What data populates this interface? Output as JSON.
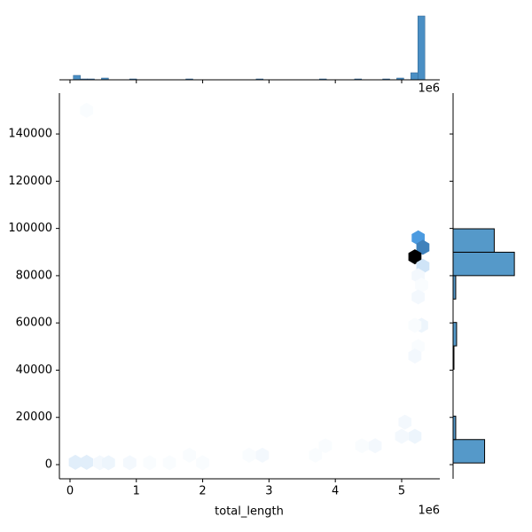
{
  "chart_data": {
    "type": "hexbin",
    "x_label": "total_length",
    "offset_text": "1e6",
    "xlim": [
      -160000,
      5575000
    ],
    "ylim": [
      -6000,
      157300
    ],
    "xticks": [
      {
        "value": 0,
        "label": "0"
      },
      {
        "value": 1000000,
        "label": "1"
      },
      {
        "value": 2000000,
        "label": "2"
      },
      {
        "value": 3000000,
        "label": "3"
      },
      {
        "value": 4000000,
        "label": "4"
      },
      {
        "value": 5000000,
        "label": "5"
      }
    ],
    "yticks": [
      0,
      20000,
      40000,
      60000,
      80000,
      100000,
      120000,
      140000
    ],
    "cmap": [
      "#ffffff",
      "#4c9be0",
      "#000000"
    ],
    "hexes": {
      "x": [
        80000,
        250000,
        450000,
        580000,
        900000,
        1200000,
        1500000,
        1800000,
        2000000,
        2700000,
        2900000,
        3700000,
        3850000,
        4400000,
        4600000,
        5000000,
        5050000,
        5200000,
        5250000,
        5320000,
        5200000,
        5320000,
        5250000,
        5300000,
        5250000,
        5300000,
        5200000,
        5250000,
        5200000,
        250000
      ],
      "y": [
        1000,
        1000,
        800,
        800,
        800,
        800,
        800,
        4000,
        800,
        4000,
        4000,
        4000,
        8000,
        8000,
        8000,
        12000,
        18000,
        12000,
        96000,
        92000,
        88000,
        84000,
        80000,
        76000,
        71000,
        59000,
        59000,
        50000,
        46000,
        150000
      ],
      "counts": [
        5,
        5,
        2,
        3,
        2,
        1,
        1,
        1,
        1,
        1,
        2,
        1,
        1,
        1,
        2,
        2,
        2,
        3,
        30,
        35,
        60,
        8,
        2,
        1,
        2,
        3,
        1,
        1,
        2,
        1
      ]
    },
    "top_hist": {
      "color": "#4a8fc4",
      "ylim": [
        0,
        75
      ],
      "bins": [
        50000,
        156000,
        262000,
        368000,
        474000,
        580000,
        686000,
        792000,
        898000,
        1004000,
        1110000,
        1216000,
        1322000,
        1428000,
        1534000,
        1640000,
        1746000,
        1852000,
        1958000,
        2064000,
        2170000,
        2276000,
        2382000,
        2488000,
        2594000,
        2700000,
        2806000,
        2912000,
        3018000,
        3124000,
        3230000,
        3336000,
        3442000,
        3548000,
        3654000,
        3760000,
        3866000,
        3972000,
        4078000,
        4184000,
        4290000,
        4396000,
        4502000,
        4608000,
        4714000,
        4820000,
        4926000,
        5032000,
        5138000,
        5244000,
        5350000
      ],
      "counts": [
        5,
        1,
        1,
        0,
        2,
        0,
        0,
        0,
        1,
        0,
        0,
        0,
        0,
        0,
        0,
        0,
        1,
        0,
        0,
        0,
        0,
        0,
        0,
        0,
        0,
        0,
        1,
        0,
        0,
        0,
        0,
        0,
        0,
        0,
        0,
        1,
        0,
        0,
        0,
        0,
        1,
        0,
        0,
        0,
        1,
        0,
        2,
        0,
        8,
        72
      ]
    },
    "right_hist": {
      "color": "#5599c9",
      "xlim": [
        0,
        80
      ],
      "bins": [
        700,
        10615,
        20530,
        30445,
        40360,
        50275,
        60190,
        70105,
        80020,
        89935,
        99850
      ],
      "counts": [
        36,
        3,
        0,
        0,
        1,
        4,
        0,
        3,
        70,
        47
      ]
    }
  }
}
